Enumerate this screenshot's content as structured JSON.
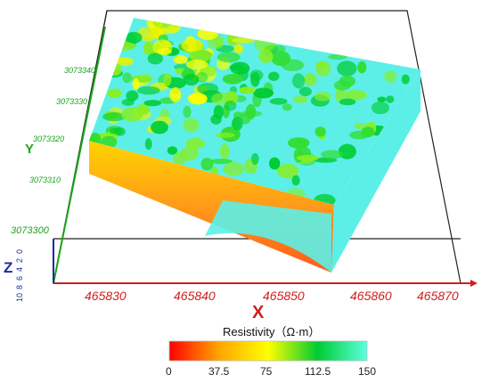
{
  "chart_data": {
    "type": "heatmap",
    "view": "3d-block",
    "x_axis": {
      "label": "X",
      "ticks": [
        "465830",
        "465840",
        "465850",
        "465860",
        "465870"
      ],
      "color": "#d11e1e"
    },
    "y_axis": {
      "label": "Y",
      "ticks": [
        "3073340",
        "3073330",
        "3073320",
        "3073310",
        "3073300"
      ],
      "color": "#1aa51a"
    },
    "z_axis": {
      "label": "Z",
      "ticks": [
        "0",
        "2",
        "4",
        "6",
        "8",
        "10"
      ],
      "color": "#1a2aa5"
    },
    "colorbar": {
      "title": "Resistivity（Ω·m）",
      "ticks": [
        "0",
        "37.5",
        "75",
        "112.5",
        "150"
      ],
      "range": [
        0,
        150
      ],
      "colors": [
        "#ff0000",
        "#ffa500",
        "#ffff00",
        "#00cc33",
        "#5cffdf"
      ]
    },
    "surface_summary": "top surface mostly cyan (high resistivity) with green and yellow patches; side faces orange-red (low resistivity)"
  }
}
